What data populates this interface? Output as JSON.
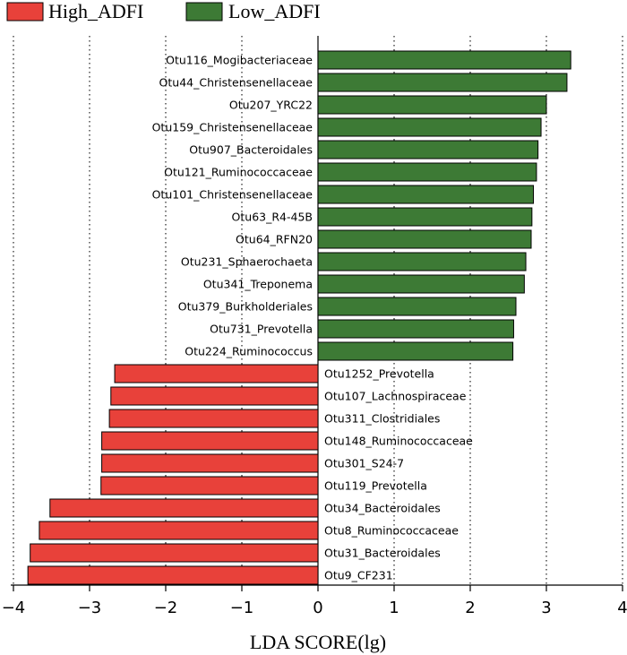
{
  "chart_data": {
    "type": "bar",
    "orientation": "horizontal",
    "xlabel": "LDA SCORE(lg)",
    "xlim": [
      -4,
      4
    ],
    "xticks": [
      -4,
      -3,
      -2,
      -1,
      0,
      1,
      2,
      3,
      4
    ],
    "xtick_labels": [
      "−4",
      "−3",
      "−2",
      "−1",
      "0",
      "1",
      "2",
      "3",
      "4"
    ],
    "grid": "vertical-dotted",
    "legend": [
      {
        "name": "High_ADFI",
        "color": "#e8413a"
      },
      {
        "name": "Low_ADFI",
        "color": "#3d7a35"
      }
    ],
    "legend_position": "top-left",
    "series": [
      {
        "name": "Low_ADFI",
        "color": "#3d7a35",
        "side": "positive",
        "categories": [
          "Otu116_Mogibacteriaceae",
          "Otu44_Christensenellaceae",
          "Otu207_YRC22",
          "Otu159_Christensenellaceae",
          "Otu907_Bacteroidales",
          "Otu121_Ruminococcaceae",
          "Otu101_Christensenellaceae",
          "Otu63_R4-45B",
          "Otu64_RFN20",
          "Otu231_Sphaerochaeta",
          "Otu341_Treponema",
          "Otu379_Burkholderiales",
          "Otu731_Prevotella",
          "Otu224_Ruminococcus"
        ],
        "values": [
          3.32,
          3.27,
          3.0,
          2.93,
          2.89,
          2.87,
          2.83,
          2.81,
          2.8,
          2.73,
          2.71,
          2.6,
          2.57,
          2.56
        ]
      },
      {
        "name": "High_ADFI",
        "color": "#e8413a",
        "side": "negative",
        "categories": [
          "Otu1252_Prevotella",
          "Otu107_Lachnospiraceae",
          "Otu311_Clostridiales",
          "Otu148_Ruminococcaceae",
          "Otu301_S24-7",
          "Otu119_Prevotella",
          "Otu34_Bacteroidales",
          "Otu8_Ruminococcaceae",
          "Otu31_Bacteroidales",
          "Otu9_CF231"
        ],
        "values": [
          -2.67,
          -2.72,
          -2.74,
          -2.84,
          -2.84,
          -2.85,
          -3.52,
          -3.66,
          -3.78,
          -3.81
        ]
      }
    ]
  }
}
